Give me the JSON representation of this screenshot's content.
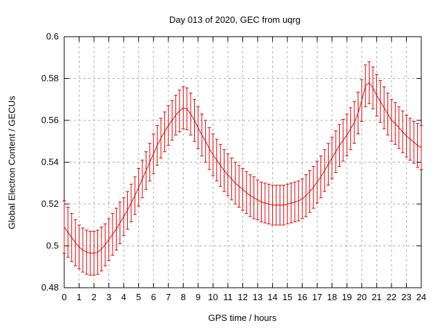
{
  "chart_data": {
    "type": "line",
    "style": "error-bars-with-connecting-line",
    "title": "Day 013 of 2020, GEC from uqrg",
    "xlabel": "GPS time / hours",
    "ylabel": "Global Electron Content / GECUs",
    "xlim": [
      0,
      24
    ],
    "ylim": [
      0.48,
      0.6
    ],
    "grid": true,
    "legend": "none",
    "series_color": "#e00000",
    "grid_color": "#a8a8a8",
    "axis_color": "#000000",
    "xticks": [
      0,
      1,
      2,
      3,
      4,
      5,
      6,
      7,
      8,
      9,
      10,
      11,
      12,
      13,
      14,
      15,
      16,
      17,
      18,
      19,
      20,
      21,
      22,
      23,
      24
    ],
    "xtick_labels": [
      "0",
      "1",
      "2",
      "3",
      "4",
      "5",
      "6",
      "7",
      "8",
      "9",
      "10",
      "11",
      "12",
      "13",
      "14",
      "15",
      "16",
      "17",
      "18",
      "19",
      "20",
      "21",
      "22",
      "23",
      "24"
    ],
    "yticks": [
      0.48,
      0.5,
      0.52,
      0.54,
      0.56,
      0.58,
      0.6
    ],
    "ytick_labels": [
      "0.48",
      "0.5",
      "0.52",
      "0.54",
      "0.56",
      "0.58",
      "0.6"
    ],
    "x": [
      0,
      0.25,
      0.5,
      0.75,
      1,
      1.25,
      1.5,
      1.75,
      2,
      2.25,
      2.5,
      2.75,
      3,
      3.25,
      3.5,
      3.75,
      4,
      4.25,
      4.5,
      4.75,
      5,
      5.25,
      5.5,
      5.75,
      6,
      6.25,
      6.5,
      6.75,
      7,
      7.25,
      7.5,
      7.75,
      8,
      8.25,
      8.5,
      8.75,
      9,
      9.25,
      9.5,
      9.75,
      10,
      10.25,
      10.5,
      10.75,
      11,
      11.25,
      11.5,
      11.75,
      12,
      12.25,
      12.5,
      12.75,
      13,
      13.25,
      13.5,
      13.75,
      14,
      14.25,
      14.5,
      14.75,
      15,
      15.25,
      15.5,
      15.75,
      16,
      16.25,
      16.5,
      16.75,
      17,
      17.25,
      17.5,
      17.75,
      18,
      18.25,
      18.5,
      18.75,
      19,
      19.25,
      19.5,
      19.75,
      20,
      20.25,
      20.5,
      20.75,
      21,
      21.25,
      21.5,
      21.75,
      22,
      22.25,
      22.5,
      22.75,
      23,
      23.25,
      23.5,
      23.75,
      24
    ],
    "y": [
      0.509,
      0.5065,
      0.504,
      0.5015,
      0.4995,
      0.498,
      0.497,
      0.4965,
      0.4965,
      0.497,
      0.4985,
      0.5005,
      0.503,
      0.5055,
      0.508,
      0.511,
      0.514,
      0.517,
      0.5205,
      0.524,
      0.528,
      0.532,
      0.536,
      0.54,
      0.544,
      0.548,
      0.5515,
      0.5545,
      0.5575,
      0.56,
      0.5625,
      0.5645,
      0.566,
      0.5655,
      0.563,
      0.56,
      0.5565,
      0.553,
      0.55,
      0.5465,
      0.5435,
      0.541,
      0.5385,
      0.536,
      0.534,
      0.532,
      0.53,
      0.5285,
      0.527,
      0.5255,
      0.524,
      0.523,
      0.522,
      0.521,
      0.5205,
      0.52,
      0.5195,
      0.5195,
      0.5195,
      0.5195,
      0.52,
      0.5205,
      0.521,
      0.5215,
      0.5225,
      0.524,
      0.526,
      0.528,
      0.5305,
      0.533,
      0.536,
      0.539,
      0.542,
      0.545,
      0.548,
      0.5505,
      0.553,
      0.556,
      0.559,
      0.5635,
      0.5695,
      0.5765,
      0.578,
      0.5755,
      0.572,
      0.569,
      0.566,
      0.563,
      0.56,
      0.5585,
      0.5565,
      0.5545,
      0.5525,
      0.551,
      0.5495,
      0.548,
      0.547
    ],
    "yerr": [
      0.0125,
      0.012,
      0.0115,
      0.011,
      0.0105,
      0.0105,
      0.0105,
      0.0105,
      0.0105,
      0.0105,
      0.0105,
      0.01,
      0.01,
      0.01,
      0.01,
      0.01,
      0.009,
      0.009,
      0.009,
      0.009,
      0.009,
      0.009,
      0.009,
      0.009,
      0.0095,
      0.0095,
      0.0095,
      0.0095,
      0.0095,
      0.0095,
      0.0095,
      0.01,
      0.01,
      0.01,
      0.01,
      0.01,
      0.01,
      0.01,
      0.01,
      0.01,
      0.01,
      0.01,
      0.01,
      0.01,
      0.01,
      0.01,
      0.01,
      0.01,
      0.01,
      0.01,
      0.01,
      0.01,
      0.0095,
      0.0095,
      0.0095,
      0.0095,
      0.0095,
      0.0095,
      0.0095,
      0.0095,
      0.0095,
      0.0095,
      0.0095,
      0.0095,
      0.0095,
      0.01,
      0.01,
      0.01,
      0.01,
      0.01,
      0.01,
      0.01,
      0.01,
      0.01,
      0.01,
      0.01,
      0.01,
      0.01,
      0.01,
      0.01,
      0.01,
      0.01,
      0.01,
      0.01,
      0.01,
      0.01,
      0.01,
      0.01,
      0.01,
      0.01,
      0.01,
      0.01,
      0.01,
      0.01,
      0.01,
      0.0105,
      0.0105
    ]
  }
}
